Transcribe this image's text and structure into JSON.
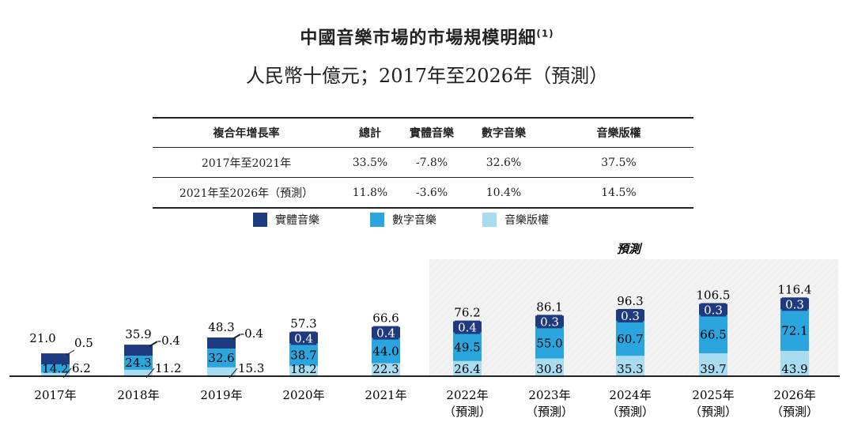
{
  "title": "中國音樂市場的市場規模明細",
  "title_note": "(1)",
  "subtitle": "人民幣十億元；2017年至2026年（預測）",
  "table": {
    "headers": [
      "複合年增長率",
      "總計",
      "實體音樂",
      "數字音樂",
      "音樂版權"
    ],
    "rows": [
      [
        "2017年至2021年",
        "33.5%",
        "-7.8%",
        "32.6%",
        "37.5%"
      ],
      [
        "2021年至2026年（預測）",
        "11.8%",
        "-3.6%",
        "10.4%",
        "14.5%"
      ]
    ]
  },
  "colors": {
    "physical": "#1e3a80",
    "digital": "#2aa5dd",
    "copyright": "#a8dcf1",
    "forecast_bg": "#f2f2f2"
  },
  "chart_data": {
    "type": "bar",
    "stacked": true,
    "forecast_label": "預測",
    "categories": [
      "2017年",
      "2018年",
      "2019年",
      "2020年",
      "2021年",
      "2022年",
      "2023年",
      "2024年",
      "2025年",
      "2026年"
    ],
    "category_sublabels": [
      "",
      "",
      "",
      "",
      "",
      "（預測）",
      "（預測）",
      "（預測）",
      "（預測）",
      "（預測）"
    ],
    "series": [
      {
        "name": "音樂版權",
        "values": [
          "6.2",
          "11.2",
          "15.3",
          "18.2",
          "22.3",
          "26.4",
          "30.8",
          "35.3",
          "39.7",
          "43.9"
        ]
      },
      {
        "name": "數字音樂",
        "values": [
          "14.2",
          "24.3",
          "32.6",
          "38.7",
          "44.0",
          "49.5",
          "55.0",
          "60.7",
          "66.5",
          "72.1"
        ]
      },
      {
        "name": "實體音樂",
        "values": [
          "0.5",
          "0.4",
          "0.4",
          "0.4",
          "0.4",
          "0.4",
          "0.3",
          "0.3",
          "0.3",
          "0.3"
        ]
      }
    ],
    "totals": [
      "21.0",
      "35.9",
      "48.3",
      "57.3",
      "66.6",
      "76.2",
      "86.1",
      "96.3",
      "106.5",
      "116.4"
    ],
    "legend": [
      "實體音樂",
      "數字音樂",
      "音樂版權"
    ],
    "legend_position": "top",
    "unit": "人民幣十億元"
  }
}
